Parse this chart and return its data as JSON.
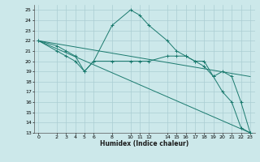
{
  "xlabel": "Humidex (Indice chaleur)",
  "bg_color": "#cce8ea",
  "grid_color": "#aacdd2",
  "line_color": "#1a7a6e",
  "xlim": [
    -0.5,
    23.5
  ],
  "ylim": [
    13,
    25.5
  ],
  "yticks": [
    13,
    14,
    15,
    16,
    17,
    18,
    19,
    20,
    21,
    22,
    23,
    24,
    25
  ],
  "xticks": [
    0,
    2,
    3,
    4,
    5,
    6,
    8,
    10,
    11,
    12,
    14,
    15,
    16,
    17,
    18,
    19,
    20,
    21,
    22,
    23
  ],
  "series": [
    {
      "x": [
        0,
        2,
        3,
        4,
        5,
        6,
        8,
        10,
        11,
        12,
        14,
        15,
        16,
        17,
        18,
        19,
        20,
        21,
        22,
        23
      ],
      "y": [
        22,
        21.5,
        21,
        20.5,
        19,
        20,
        23.5,
        25,
        24.5,
        23.5,
        22,
        21,
        20.5,
        20,
        19.5,
        18.5,
        17,
        16,
        13.5,
        13
      ],
      "marker": true
    },
    {
      "x": [
        0,
        2,
        3,
        4,
        5,
        6,
        8,
        10,
        11,
        12,
        14,
        15,
        16,
        17,
        18,
        19,
        20,
        21,
        22,
        23
      ],
      "y": [
        22,
        21,
        20.5,
        20,
        19,
        20,
        20,
        20,
        20,
        20,
        20.5,
        20.5,
        20.5,
        20,
        20,
        18.5,
        19,
        18.5,
        16,
        13
      ],
      "marker": true
    },
    {
      "x": [
        0,
        23
      ],
      "y": [
        22,
        18.5
      ],
      "marker": false
    },
    {
      "x": [
        0,
        23
      ],
      "y": [
        22,
        13
      ],
      "marker": false
    }
  ]
}
